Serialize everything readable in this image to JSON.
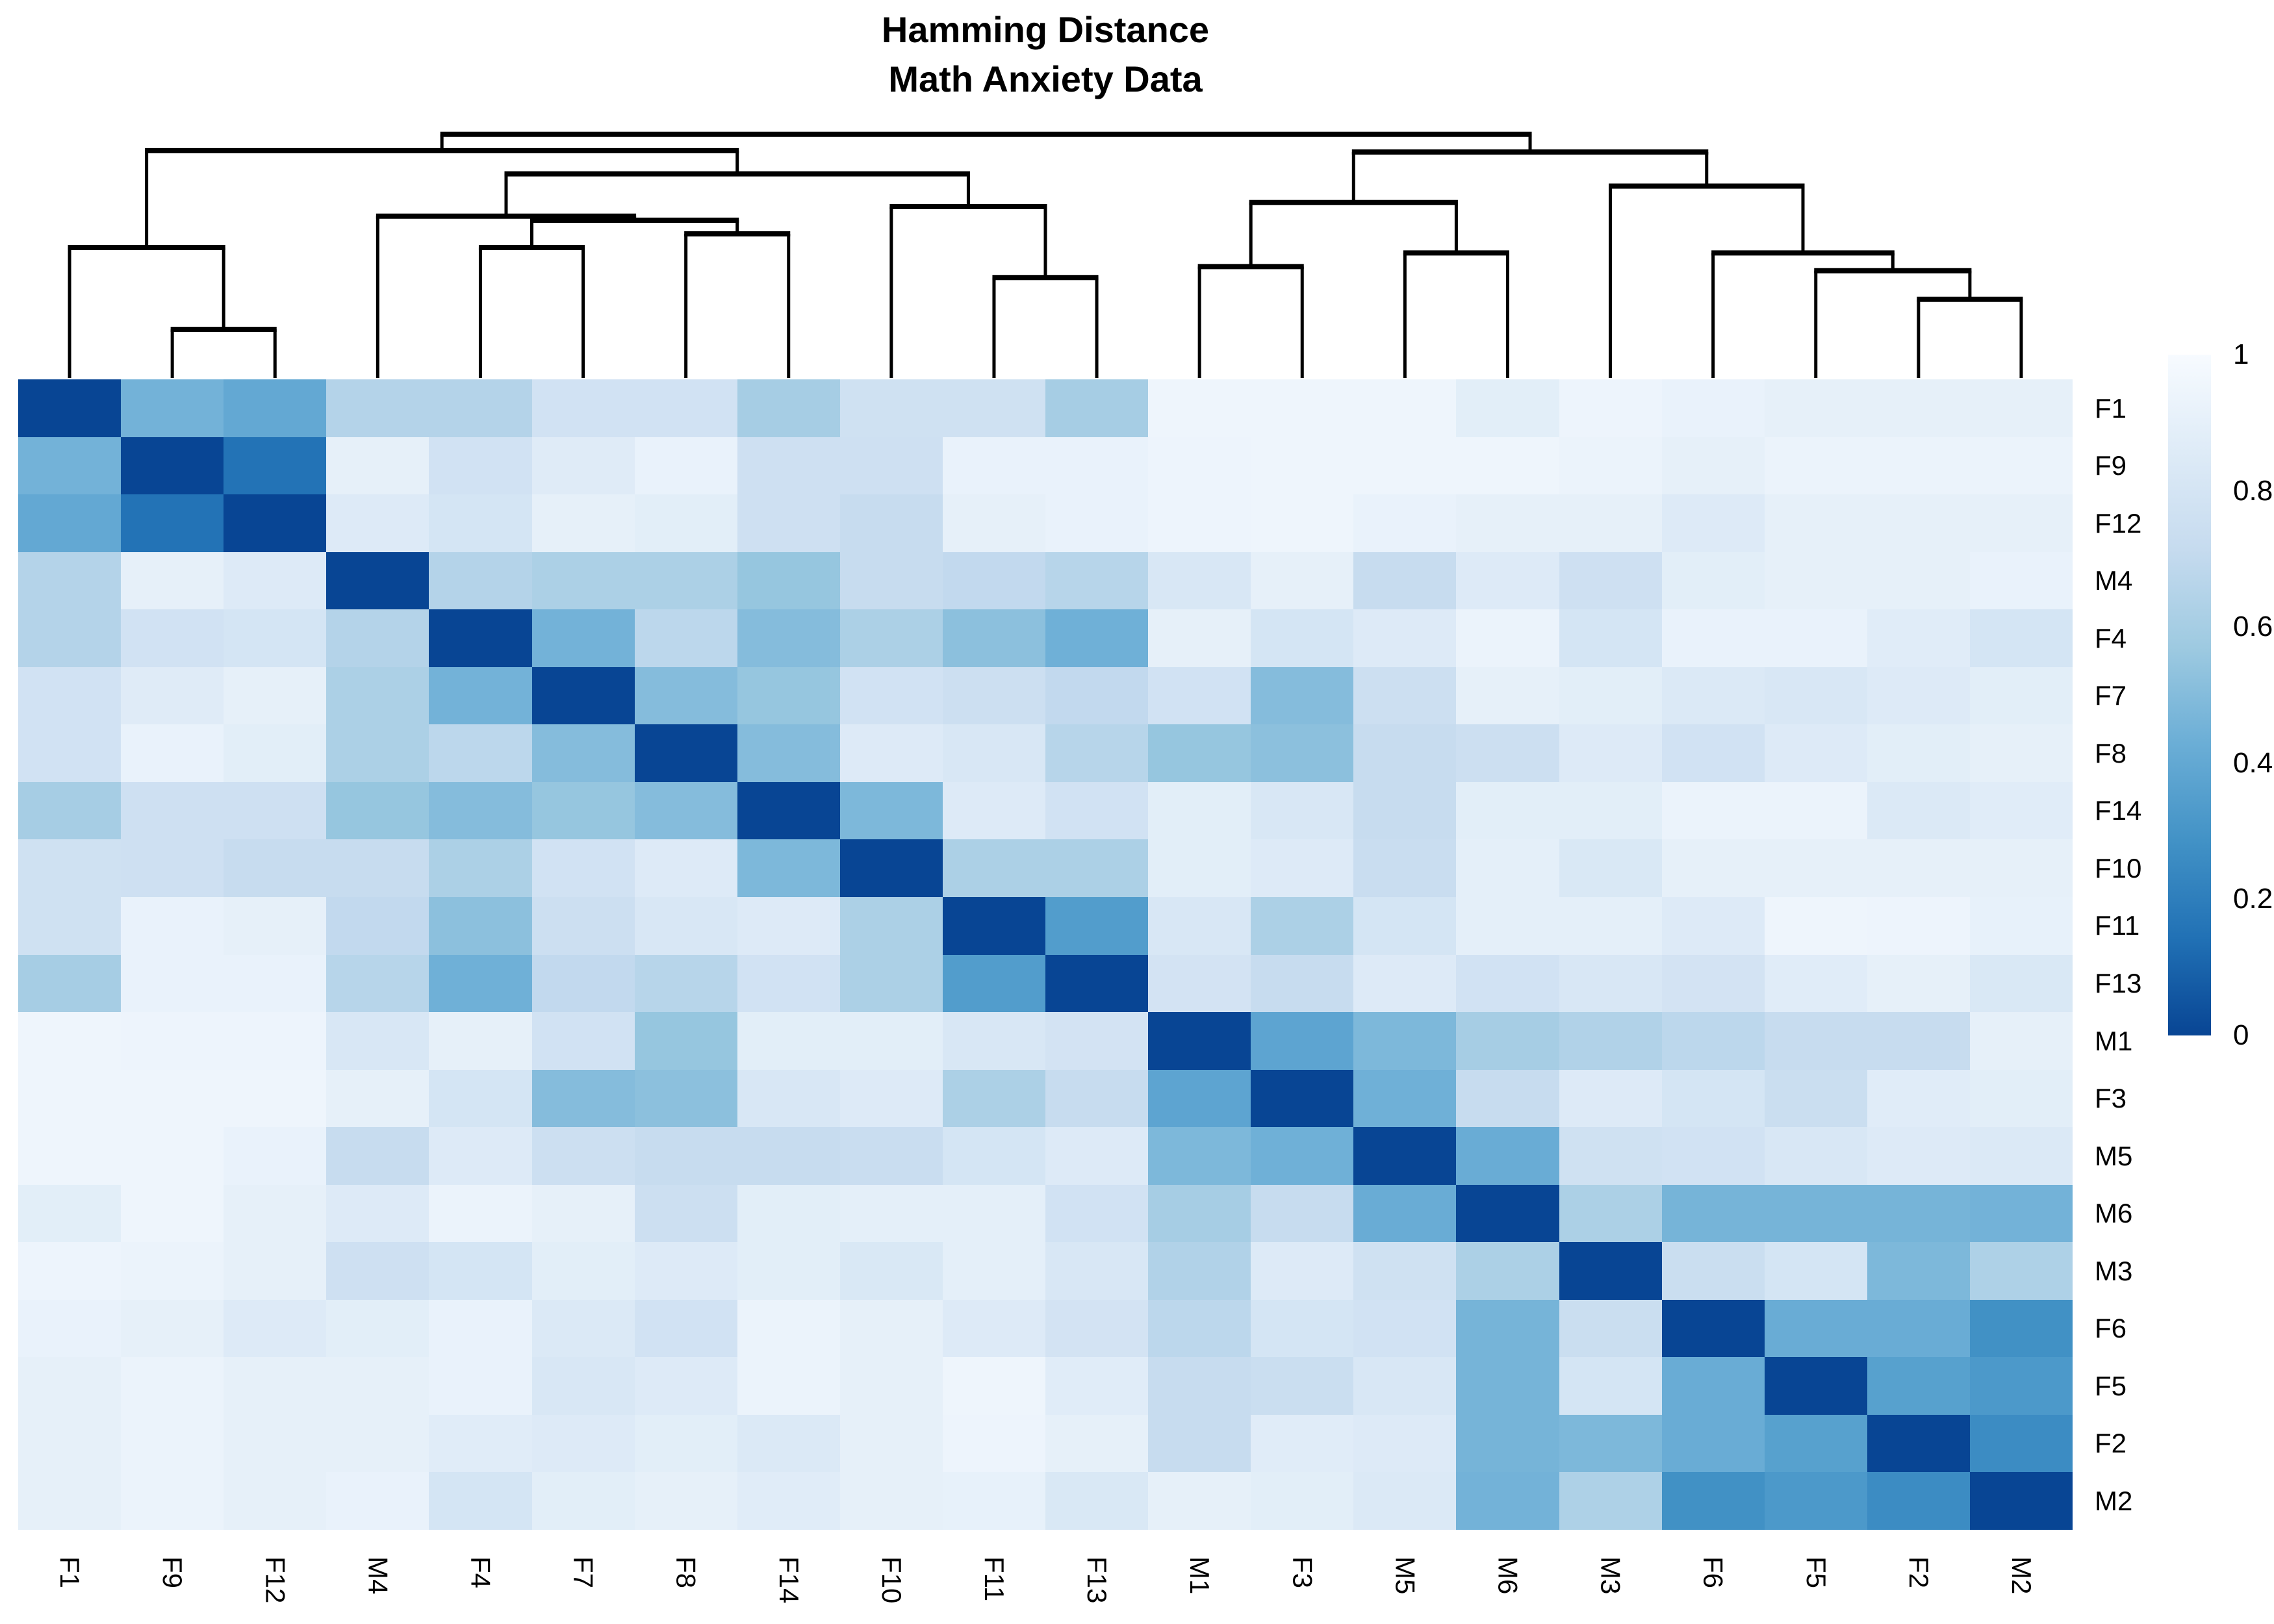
{
  "title": {
    "line1": "Hamming Distance",
    "line2": "Math Anxiety Data"
  },
  "chart_data": {
    "type": "heatmap",
    "title": "Hamming Distance",
    "subtitle": "Math Anxiety Data",
    "labels": [
      "F1",
      "F9",
      "F12",
      "M4",
      "F4",
      "F7",
      "F8",
      "F14",
      "F10",
      "F11",
      "F13",
      "M1",
      "F3",
      "M5",
      "M6",
      "M3",
      "F6",
      "F5",
      "F2",
      "M2"
    ],
    "matrix": [
      [
        0,
        0.45,
        0.4,
        0.65,
        0.65,
        0.78,
        0.78,
        0.6,
        0.77,
        0.77,
        0.6,
        0.95,
        0.95,
        0.95,
        0.88,
        0.94,
        0.92,
        0.9,
        0.9,
        0.9
      ],
      [
        0.45,
        0,
        0.15,
        0.9,
        0.78,
        0.86,
        0.92,
        0.76,
        0.76,
        0.92,
        0.92,
        0.94,
        0.95,
        0.95,
        0.95,
        0.93,
        0.9,
        0.93,
        0.93,
        0.93
      ],
      [
        0.4,
        0.15,
        0,
        0.85,
        0.8,
        0.9,
        0.88,
        0.76,
        0.72,
        0.9,
        0.92,
        0.94,
        0.95,
        0.92,
        0.9,
        0.9,
        0.85,
        0.9,
        0.9,
        0.9
      ],
      [
        0.65,
        0.9,
        0.85,
        0,
        0.65,
        0.62,
        0.62,
        0.55,
        0.72,
        0.7,
        0.66,
        0.82,
        0.9,
        0.72,
        0.85,
        0.76,
        0.88,
        0.9,
        0.9,
        0.92
      ],
      [
        0.65,
        0.78,
        0.8,
        0.65,
        0,
        0.45,
        0.68,
        0.5,
        0.62,
        0.52,
        0.44,
        0.9,
        0.8,
        0.85,
        0.93,
        0.8,
        0.92,
        0.92,
        0.87,
        0.8
      ],
      [
        0.78,
        0.86,
        0.9,
        0.62,
        0.45,
        0,
        0.5,
        0.55,
        0.78,
        0.75,
        0.7,
        0.78,
        0.5,
        0.75,
        0.9,
        0.88,
        0.84,
        0.82,
        0.85,
        0.88
      ],
      [
        0.78,
        0.92,
        0.88,
        0.62,
        0.68,
        0.5,
        0,
        0.5,
        0.85,
        0.82,
        0.66,
        0.55,
        0.52,
        0.72,
        0.75,
        0.85,
        0.78,
        0.85,
        0.88,
        0.9
      ],
      [
        0.6,
        0.76,
        0.76,
        0.55,
        0.5,
        0.55,
        0.5,
        0,
        0.48,
        0.85,
        0.78,
        0.88,
        0.82,
        0.72,
        0.88,
        0.88,
        0.93,
        0.93,
        0.84,
        0.87
      ],
      [
        0.77,
        0.76,
        0.72,
        0.72,
        0.62,
        0.78,
        0.85,
        0.48,
        0,
        0.62,
        0.62,
        0.88,
        0.85,
        0.73,
        0.89,
        0.83,
        0.9,
        0.9,
        0.9,
        0.9
      ],
      [
        0.77,
        0.92,
        0.9,
        0.7,
        0.52,
        0.75,
        0.82,
        0.85,
        0.62,
        0,
        0.34,
        0.82,
        0.62,
        0.8,
        0.89,
        0.89,
        0.85,
        0.95,
        0.94,
        0.91
      ],
      [
        0.6,
        0.92,
        0.92,
        0.66,
        0.44,
        0.7,
        0.66,
        0.78,
        0.62,
        0.34,
        0,
        0.79,
        0.72,
        0.85,
        0.78,
        0.82,
        0.79,
        0.87,
        0.9,
        0.83
      ],
      [
        0.95,
        0.94,
        0.94,
        0.82,
        0.9,
        0.78,
        0.55,
        0.88,
        0.88,
        0.82,
        0.79,
        0,
        0.38,
        0.48,
        0.6,
        0.64,
        0.68,
        0.72,
        0.72,
        0.9
      ],
      [
        0.95,
        0.95,
        0.95,
        0.9,
        0.8,
        0.5,
        0.52,
        0.82,
        0.85,
        0.62,
        0.72,
        0.38,
        0,
        0.44,
        0.72,
        0.85,
        0.8,
        0.74,
        0.87,
        0.88
      ],
      [
        0.95,
        0.95,
        0.92,
        0.72,
        0.85,
        0.75,
        0.72,
        0.72,
        0.73,
        0.8,
        0.85,
        0.48,
        0.44,
        0,
        0.42,
        0.77,
        0.78,
        0.82,
        0.85,
        0.84
      ],
      [
        0.88,
        0.95,
        0.9,
        0.85,
        0.93,
        0.9,
        0.75,
        0.88,
        0.89,
        0.89,
        0.78,
        0.6,
        0.72,
        0.42,
        0,
        0.62,
        0.46,
        0.46,
        0.46,
        0.45
      ],
      [
        0.94,
        0.93,
        0.9,
        0.76,
        0.8,
        0.88,
        0.85,
        0.88,
        0.83,
        0.89,
        0.82,
        0.64,
        0.85,
        0.77,
        0.62,
        0,
        0.74,
        0.8,
        0.48,
        0.63
      ],
      [
        0.92,
        0.9,
        0.85,
        0.88,
        0.92,
        0.84,
        0.78,
        0.93,
        0.9,
        0.85,
        0.79,
        0.68,
        0.8,
        0.78,
        0.46,
        0.74,
        0,
        0.42,
        0.42,
        0.28
      ],
      [
        0.9,
        0.93,
        0.9,
        0.9,
        0.92,
        0.82,
        0.85,
        0.93,
        0.9,
        0.95,
        0.87,
        0.72,
        0.74,
        0.82,
        0.46,
        0.8,
        0.42,
        0,
        0.36,
        0.32
      ],
      [
        0.9,
        0.93,
        0.9,
        0.9,
        0.87,
        0.85,
        0.88,
        0.84,
        0.9,
        0.94,
        0.9,
        0.72,
        0.87,
        0.85,
        0.46,
        0.48,
        0.42,
        0.36,
        0,
        0.26
      ],
      [
        0.9,
        0.93,
        0.9,
        0.92,
        0.8,
        0.88,
        0.9,
        0.87,
        0.9,
        0.91,
        0.83,
        0.9,
        0.88,
        0.84,
        0.45,
        0.63,
        0.28,
        0.32,
        0.26,
        0
      ]
    ],
    "dendrogram": {
      "merges": [
        {
          "id": "m0",
          "a": "F9",
          "b": "F12",
          "h": 0.15
        },
        {
          "id": "m1",
          "a": "F1",
          "b": "m0",
          "h": 0.45
        },
        {
          "id": "m2",
          "a": "F4",
          "b": "F7",
          "h": 0.45
        },
        {
          "id": "m3",
          "a": "F8",
          "b": "F14",
          "h": 0.5
        },
        {
          "id": "m4",
          "a": "m2",
          "b": "m3",
          "h": 0.55
        },
        {
          "id": "m5",
          "a": "M4",
          "b": "m4",
          "h": 0.565
        },
        {
          "id": "m6",
          "a": "F11",
          "b": "F13",
          "h": 0.34
        },
        {
          "id": "m7",
          "a": "F10",
          "b": "m6",
          "h": 0.6
        },
        {
          "id": "m8",
          "a": "m5",
          "b": "m7",
          "h": 0.72
        },
        {
          "id": "m9",
          "a": "m1",
          "b": "m8",
          "h": 0.805
        },
        {
          "id": "m10",
          "a": "M1",
          "b": "F3",
          "h": 0.38
        },
        {
          "id": "m11",
          "a": "M5",
          "b": "M6",
          "h": 0.43
        },
        {
          "id": "m12",
          "a": "m10",
          "b": "m11",
          "h": 0.615
        },
        {
          "id": "m13",
          "a": "F2",
          "b": "M2",
          "h": 0.26
        },
        {
          "id": "m14",
          "a": "F5",
          "b": "m13",
          "h": 0.365
        },
        {
          "id": "m15",
          "a": "F6",
          "b": "m14",
          "h": 0.43
        },
        {
          "id": "m16",
          "a": "M3",
          "b": "m15",
          "h": 0.675
        },
        {
          "id": "m17",
          "a": "m12",
          "b": "m16",
          "h": 0.8
        },
        {
          "id": "m18",
          "a": "m9",
          "b": "m17",
          "h": 0.865
        }
      ]
    },
    "legend": {
      "ticks": [
        "1",
        "0.8",
        "0.6",
        "0.4",
        "0.2",
        "0"
      ],
      "tick_values": [
        1,
        0.8,
        0.6,
        0.4,
        0.2,
        0
      ],
      "min": 0,
      "max": 1
    },
    "colors": {
      "ramp_dark_to_light": [
        "#084594",
        "#2171b5",
        "#4292c6",
        "#6baed6",
        "#9ecae1",
        "#c6dbef",
        "#deebf7",
        "#f7fbff"
      ],
      "line_color": "#000000"
    },
    "layout": {
      "grid": false,
      "legend_position": "right",
      "dendrogram_position": "top"
    }
  }
}
